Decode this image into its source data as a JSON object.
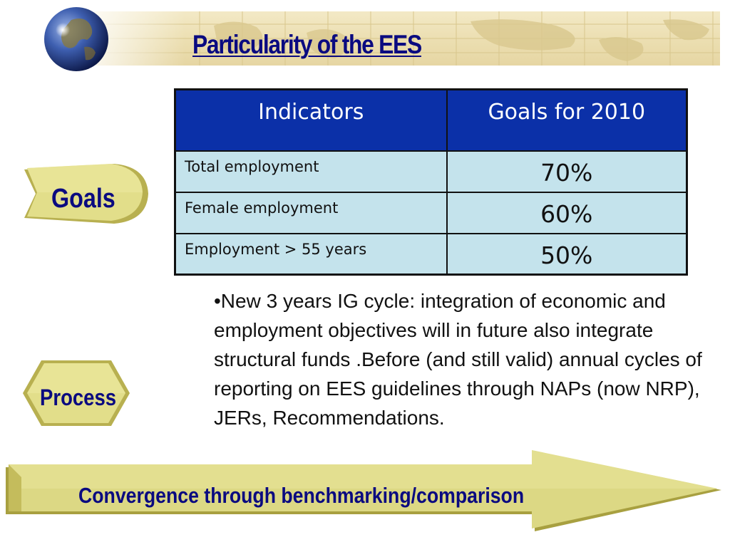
{
  "slide": {
    "title": "Particularity of the EES"
  },
  "table": {
    "headers": [
      "Indicators",
      "Goals for 2010"
    ],
    "rows": [
      {
        "indicator": "Total employment",
        "goal": "70%"
      },
      {
        "indicator": "Female employment",
        "goal": "60%"
      },
      {
        "indicator": "Employment > 55 years",
        "goal": "50%"
      }
    ]
  },
  "badges": {
    "goals": "Goals",
    "process": "Process"
  },
  "paragraph": "•New 3 years IG cycle: integration of economic and employment objectives will in future also integrate structural funds .Before (and still valid) annual cycles of reporting on EES guidelines through NAPs (now NRP), JERs, Recommendations.",
  "arrow": {
    "label": "Convergence through benchmarking/comparison"
  },
  "colors": {
    "title": "#0a0a80",
    "table_header": "#0b30a8",
    "table_cell": "#c4e3ec",
    "badge_fill": "#e0dc84",
    "banner": "#ecdfb2"
  },
  "icons": {
    "globe": "globe-icon"
  }
}
